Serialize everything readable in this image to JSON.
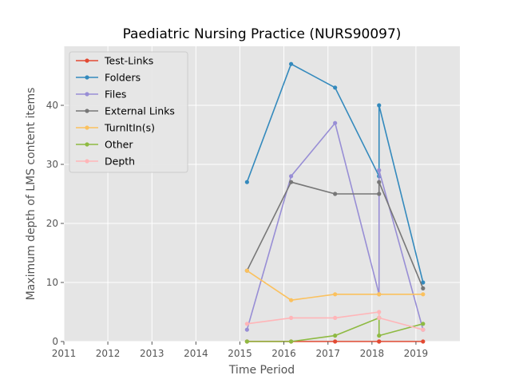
{
  "chart_data": {
    "type": "line",
    "title": "Paediatric Nursing Practice (NURS90097)",
    "xlabel": "Time Period",
    "ylabel": "Maximum depth of LMS content items",
    "xlim": [
      "2011-01-01",
      "2020-01-01"
    ],
    "ylim": [
      0,
      50
    ],
    "x_ticks": [
      "2011",
      "2012",
      "2013",
      "2014",
      "2015",
      "2016",
      "2017",
      "2018",
      "2019"
    ],
    "y_ticks": [
      0,
      10,
      20,
      30,
      40
    ],
    "grid": true,
    "legend_position": "top-left",
    "series": [
      {
        "name": "Test-Links",
        "color": "#E24A33",
        "x": [
          "2015-03-01",
          "2016-03-01",
          "2017-03-01",
          "2018-03-01",
          "2018-03-01",
          "2019-03-01"
        ],
        "y": [
          0,
          0,
          0,
          0,
          0,
          0
        ]
      },
      {
        "name": "Folders",
        "color": "#348ABD",
        "x": [
          "2015-03-01",
          "2016-03-01",
          "2017-03-01",
          "2018-03-01",
          "2018-03-01",
          "2019-03-01"
        ],
        "y": [
          27,
          47,
          43,
          28,
          40,
          10
        ]
      },
      {
        "name": "Files",
        "color": "#988ED5",
        "x": [
          "2015-03-01",
          "2016-03-01",
          "2017-03-01",
          "2018-03-01",
          "2018-03-01",
          "2019-03-01"
        ],
        "y": [
          2,
          28,
          37,
          8,
          29,
          2
        ]
      },
      {
        "name": "External Links",
        "color": "#777777",
        "x": [
          "2015-03-01",
          "2016-03-01",
          "2017-03-01",
          "2018-03-01",
          "2018-03-01",
          "2019-03-01"
        ],
        "y": [
          12,
          27,
          25,
          25,
          27,
          9
        ]
      },
      {
        "name": "TurnItIn(s)",
        "color": "#FBC15E",
        "x": [
          "2015-03-01",
          "2016-03-01",
          "2017-03-01",
          "2018-03-01",
          "2018-03-01",
          "2019-03-01"
        ],
        "y": [
          12,
          7,
          8,
          8,
          8,
          8
        ]
      },
      {
        "name": "Other",
        "color": "#8EBA42",
        "x": [
          "2015-03-01",
          "2016-03-01",
          "2017-03-01",
          "2018-03-01",
          "2018-03-01",
          "2019-03-01"
        ],
        "y": [
          0,
          0,
          1,
          4,
          1,
          3
        ]
      },
      {
        "name": "Depth",
        "color": "#FFB5B8",
        "x": [
          "2015-03-01",
          "2016-03-01",
          "2017-03-01",
          "2018-03-01",
          "2018-03-01",
          "2019-03-01"
        ],
        "y": [
          3,
          4,
          4,
          5,
          4,
          2
        ]
      }
    ]
  }
}
